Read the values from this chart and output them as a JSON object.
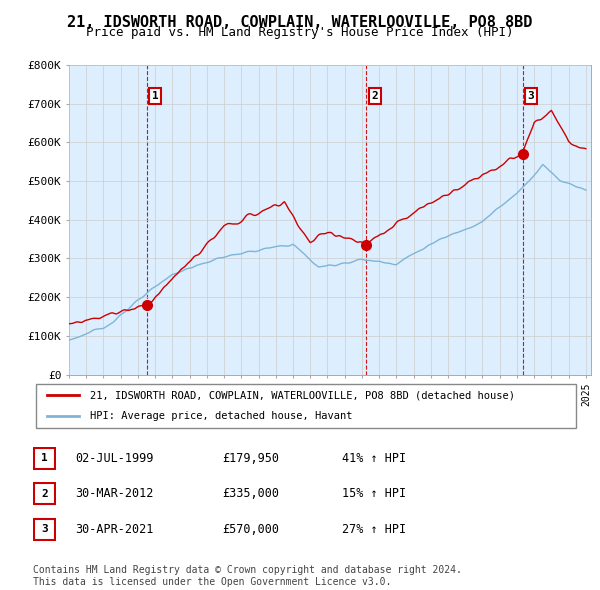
{
  "title": "21, IDSWORTH ROAD, COWPLAIN, WATERLOOVILLE, PO8 8BD",
  "subtitle": "Price paid vs. HM Land Registry's House Price Index (HPI)",
  "ylim": [
    0,
    800000
  ],
  "yticks": [
    0,
    100000,
    200000,
    300000,
    400000,
    500000,
    600000,
    700000,
    800000
  ],
  "ytick_labels": [
    "£0",
    "£100K",
    "£200K",
    "£300K",
    "£400K",
    "£500K",
    "£600K",
    "£700K",
    "£800K"
  ],
  "sale_dates": [
    1999.5,
    2012.25,
    2021.33
  ],
  "sale_prices": [
    179950,
    335000,
    570000
  ],
  "sale_labels": [
    "1",
    "2",
    "3"
  ],
  "red_line_color": "#cc0000",
  "blue_line_color": "#7eb5d6",
  "plot_bg_color": "#ddeeff",
  "marker_color": "#cc0000",
  "legend_entries": [
    "21, IDSWORTH ROAD, COWPLAIN, WATERLOOVILLE, PO8 8BD (detached house)",
    "HPI: Average price, detached house, Havant"
  ],
  "table_data": [
    [
      "1",
      "02-JUL-1999",
      "£179,950",
      "41% ↑ HPI"
    ],
    [
      "2",
      "30-MAR-2012",
      "£335,000",
      "15% ↑ HPI"
    ],
    [
      "3",
      "30-APR-2021",
      "£570,000",
      "27% ↑ HPI"
    ]
  ],
  "footnote": "Contains HM Land Registry data © Crown copyright and database right 2024.\nThis data is licensed under the Open Government Licence v3.0.",
  "background_color": "#ffffff",
  "grid_color": "#cccccc",
  "title_fontsize": 11,
  "subtitle_fontsize": 9,
  "tick_fontsize": 8
}
